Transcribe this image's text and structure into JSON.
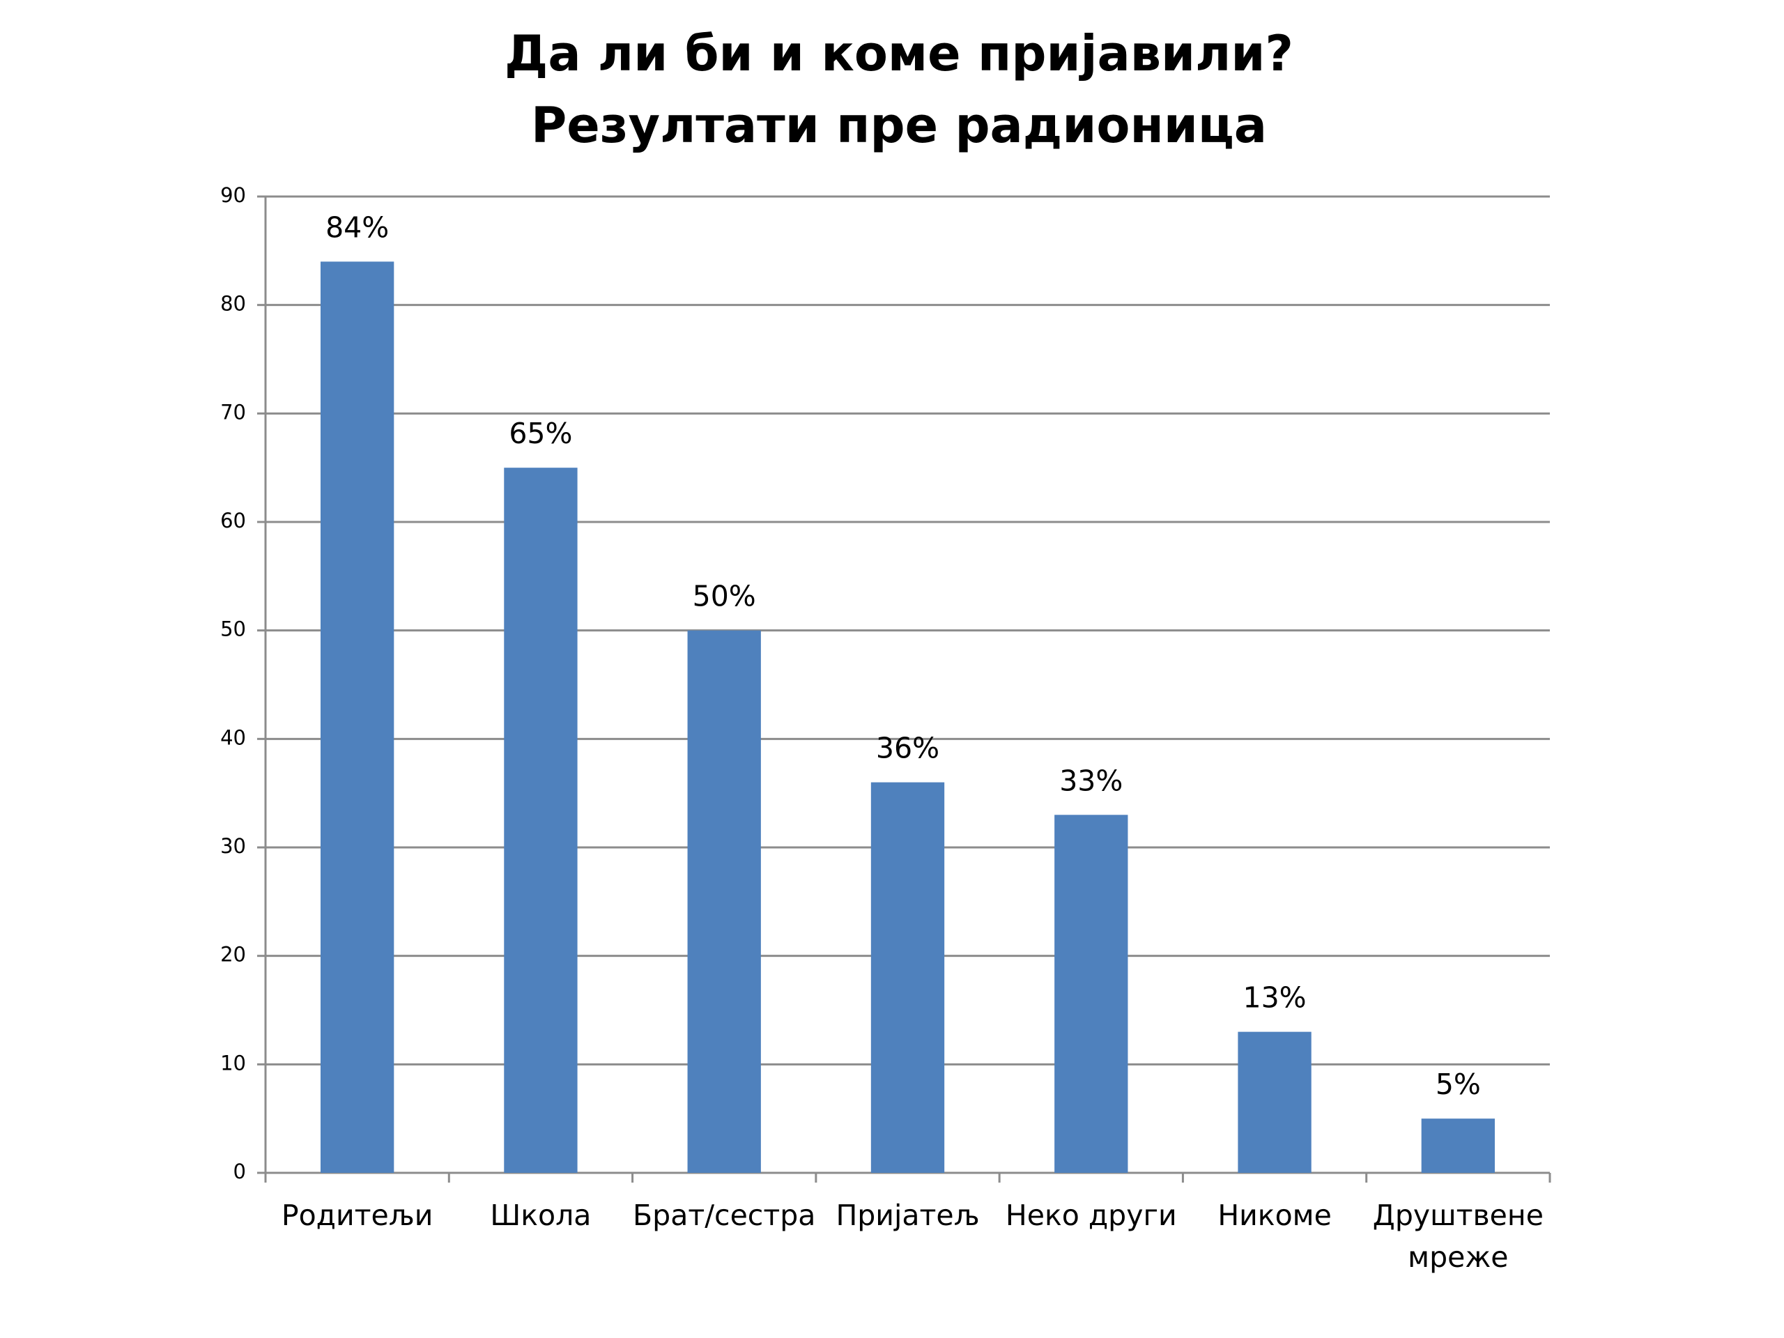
{
  "chart_data": {
    "type": "bar",
    "title": "Да ли би и коме пријавили?",
    "subtitle": "Резултати пре радионица",
    "categories": [
      "Родитељи",
      "Школа",
      "Брат/сестра",
      "Пријатељ",
      "Неко други",
      "Никоме",
      "Друштвене мреже"
    ],
    "values": [
      84,
      65,
      50,
      36,
      33,
      13,
      5
    ],
    "value_labels": [
      "84%",
      "65%",
      "50%",
      "36%",
      "33%",
      "13%",
      "5%"
    ],
    "color": "#4f81bd",
    "ylim": [
      0,
      90
    ],
    "yticks": [
      0,
      10,
      20,
      30,
      40,
      50,
      60,
      70,
      80,
      90
    ],
    "grid": true
  }
}
